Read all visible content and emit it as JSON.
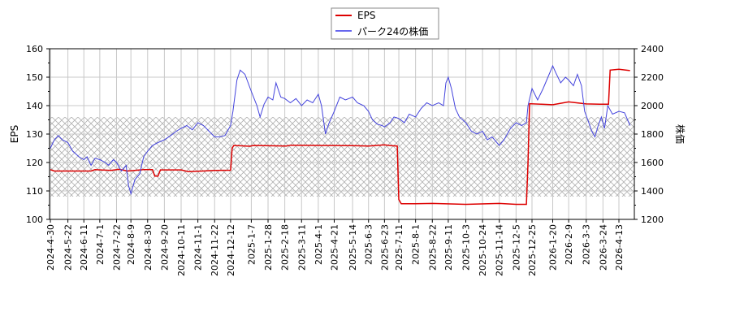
{
  "chart_data": {
    "type": "line",
    "title": "",
    "legend": {
      "position": "top-center",
      "entries": [
        {
          "name": "EPS",
          "color": "#dd0000"
        },
        {
          "name": "パーク24の株価",
          "color": "#4444dd"
        }
      ]
    },
    "xlabel": "",
    "ylabel_left": "EPS",
    "ylabel_right": "株価",
    "ylim_left": [
      100,
      160
    ],
    "ylim_right": [
      1200,
      2400
    ],
    "yticks_left": [
      100,
      110,
      120,
      130,
      140,
      150,
      160
    ],
    "yticks_right": [
      1200,
      1400,
      1600,
      1800,
      2000,
      2200,
      2400
    ],
    "grid": true,
    "hatch_band_eps": [
      108,
      136
    ],
    "x_tick_labels": [
      "2024-4-30",
      "2024-5-22",
      "2024-6-11",
      "2024-7-1",
      "2024-7-22",
      "2024-8-9",
      "2024-8-30",
      "2024-9-20",
      "2024-10-11",
      "2024-11-1",
      "2024-11-22",
      "2024-12-12",
      "2025-1-7",
      "2025-1-28",
      "2025-2-18",
      "2025-3-11",
      "2025-4-1",
      "2025-4-21",
      "2025-5-14",
      "2025-6-3",
      "2025-6-23",
      "2025-7-11",
      "2025-8-1",
      "2025-8-22",
      "2025-9-11",
      "2025-10-3",
      "2025-10-24",
      "2025-11-14",
      "2025-12-5",
      "2025-12-25",
      "2026-1-20",
      "2026-2-9",
      "2026-3-3",
      "2026-3-24",
      "2026-4-13"
    ],
    "series": [
      {
        "name": "EPS",
        "axis": "left",
        "color": "#dd0000",
        "points": [
          [
            "2024-4-30",
            117.5
          ],
          [
            "2024-5-5",
            117.0
          ],
          [
            "2024-6-20",
            117.0
          ],
          [
            "2024-6-25",
            117.5
          ],
          [
            "2024-7-15",
            117.2
          ],
          [
            "2024-7-25",
            117.6
          ],
          [
            "2024-8-5",
            117.0
          ],
          [
            "2024-8-25",
            117.5
          ],
          [
            "2024-9-5",
            117.5
          ],
          [
            "2024-9-8",
            115.2
          ],
          [
            "2024-9-12",
            115.2
          ],
          [
            "2024-9-15",
            117.4
          ],
          [
            "2024-10-11",
            117.4
          ],
          [
            "2024-10-20",
            116.8
          ],
          [
            "2024-11-22",
            117.2
          ],
          [
            "2024-12-12",
            117.3
          ],
          [
            "2024-12-14",
            125.0
          ],
          [
            "2024-12-16",
            126.0
          ],
          [
            "2025-1-5",
            125.7
          ],
          [
            "2025-1-10",
            126.0
          ],
          [
            "2025-2-20",
            125.8
          ],
          [
            "2025-2-25",
            126.1
          ],
          [
            "2025-4-1",
            126.0
          ],
          [
            "2025-5-14",
            125.9
          ],
          [
            "2025-6-3",
            125.8
          ],
          [
            "2025-6-23",
            126.2
          ],
          [
            "2025-7-1",
            125.9
          ],
          [
            "2025-7-9",
            125.8
          ],
          [
            "2025-7-11",
            107.0
          ],
          [
            "2025-7-14",
            105.5
          ],
          [
            "2025-8-1",
            105.5
          ],
          [
            "2025-8-22",
            105.6
          ],
          [
            "2025-10-3",
            105.3
          ],
          [
            "2025-11-14",
            105.6
          ],
          [
            "2025-12-5",
            105.3
          ],
          [
            "2025-12-18",
            105.3
          ],
          [
            "2025-12-20",
            120.0
          ],
          [
            "2025-12-22",
            140.7
          ],
          [
            "2026-1-20",
            140.3
          ],
          [
            "2026-2-9",
            141.3
          ],
          [
            "2026-3-3",
            140.6
          ],
          [
            "2026-3-20",
            140.5
          ],
          [
            "2026-3-31",
            140.5
          ],
          [
            "2026-4-2",
            152.5
          ],
          [
            "2026-4-13",
            152.8
          ],
          [
            "2026-4-27",
            152.3
          ]
        ]
      },
      {
        "name": "パーク24の株価",
        "axis": "right",
        "color": "#4444dd",
        "points": [
          [
            "2024-4-30",
            1700
          ],
          [
            "2024-5-5",
            1760
          ],
          [
            "2024-5-10",
            1790
          ],
          [
            "2024-5-15",
            1760
          ],
          [
            "2024-5-22",
            1740
          ],
          [
            "2024-5-28",
            1680
          ],
          [
            "2024-6-5",
            1640
          ],
          [
            "2024-6-11",
            1620
          ],
          [
            "2024-6-15",
            1640
          ],
          [
            "2024-6-20",
            1580
          ],
          [
            "2024-6-25",
            1630
          ],
          [
            "2024-7-1",
            1620
          ],
          [
            "2024-7-8",
            1600
          ],
          [
            "2024-7-12",
            1580
          ],
          [
            "2024-7-18",
            1620
          ],
          [
            "2024-7-22",
            1600
          ],
          [
            "2024-7-28",
            1540
          ],
          [
            "2024-8-3",
            1580
          ],
          [
            "2024-8-6",
            1440
          ],
          [
            "2024-8-9",
            1380
          ],
          [
            "2024-8-14",
            1480
          ],
          [
            "2024-8-20",
            1520
          ],
          [
            "2024-8-25",
            1640
          ],
          [
            "2024-8-30",
            1680
          ],
          [
            "2024-9-5",
            1720
          ],
          [
            "2024-9-12",
            1740
          ],
          [
            "2024-9-20",
            1760
          ],
          [
            "2024-9-28",
            1790
          ],
          [
            "2024-10-5",
            1820
          ],
          [
            "2024-10-11",
            1840
          ],
          [
            "2024-10-18",
            1860
          ],
          [
            "2024-10-25",
            1830
          ],
          [
            "2024-11-1",
            1880
          ],
          [
            "2024-11-8",
            1860
          ],
          [
            "2024-11-15",
            1820
          ],
          [
            "2024-11-22",
            1780
          ],
          [
            "2024-11-28",
            1780
          ],
          [
            "2024-12-5",
            1790
          ],
          [
            "2024-12-12",
            1860
          ],
          [
            "2024-12-15",
            1960
          ],
          [
            "2024-12-20",
            2180
          ],
          [
            "2024-12-24",
            2250
          ],
          [
            "2024-12-30",
            2220
          ],
          [
            "2025-1-7",
            2100
          ],
          [
            "2025-1-14",
            2000
          ],
          [
            "2025-1-18",
            1920
          ],
          [
            "2025-1-23",
            2010
          ],
          [
            "2025-1-28",
            2060
          ],
          [
            "2025-2-3",
            2040
          ],
          [
            "2025-2-7",
            2160
          ],
          [
            "2025-2-13",
            2060
          ],
          [
            "2025-2-18",
            2050
          ],
          [
            "2025-2-25",
            2020
          ],
          [
            "2025-3-4",
            2050
          ],
          [
            "2025-3-11",
            2000
          ],
          [
            "2025-3-18",
            2040
          ],
          [
            "2025-3-25",
            2020
          ],
          [
            "2025-4-1",
            2080
          ],
          [
            "2025-4-5",
            2000
          ],
          [
            "2025-4-10",
            1800
          ],
          [
            "2025-4-14",
            1870
          ],
          [
            "2025-4-21",
            1960
          ],
          [
            "2025-4-28",
            2060
          ],
          [
            "2025-5-5",
            2040
          ],
          [
            "2025-5-14",
            2060
          ],
          [
            "2025-5-20",
            2020
          ],
          [
            "2025-5-28",
            2000
          ],
          [
            "2025-6-3",
            1960
          ],
          [
            "2025-6-8",
            1900
          ],
          [
            "2025-6-14",
            1870
          ],
          [
            "2025-6-20",
            1860
          ],
          [
            "2025-6-23",
            1850
          ],
          [
            "2025-6-30",
            1880
          ],
          [
            "2025-7-5",
            1920
          ],
          [
            "2025-7-11",
            1910
          ],
          [
            "2025-7-18",
            1880
          ],
          [
            "2025-7-24",
            1940
          ],
          [
            "2025-8-1",
            1920
          ],
          [
            "2025-8-8",
            1980
          ],
          [
            "2025-8-15",
            2020
          ],
          [
            "2025-8-22",
            2000
          ],
          [
            "2025-8-30",
            2020
          ],
          [
            "2025-9-5",
            2000
          ],
          [
            "2025-9-8",
            2160
          ],
          [
            "2025-9-11",
            2200
          ],
          [
            "2025-9-15",
            2120
          ],
          [
            "2025-9-20",
            1980
          ],
          [
            "2025-9-25",
            1920
          ],
          [
            "2025-10-3",
            1880
          ],
          [
            "2025-10-10",
            1820
          ],
          [
            "2025-10-17",
            1800
          ],
          [
            "2025-10-24",
            1820
          ],
          [
            "2025-10-30",
            1760
          ],
          [
            "2025-11-5",
            1780
          ],
          [
            "2025-11-14",
            1720
          ],
          [
            "2025-11-20",
            1760
          ],
          [
            "2025-11-28",
            1840
          ],
          [
            "2025-12-5",
            1880
          ],
          [
            "2025-12-12",
            1860
          ],
          [
            "2025-12-18",
            1880
          ],
          [
            "2025-12-20",
            2000
          ],
          [
            "2025-12-25",
            2120
          ],
          [
            "2026-1-1",
            2040
          ],
          [
            "2026-1-8",
            2120
          ],
          [
            "2026-1-14",
            2200
          ],
          [
            "2026-1-20",
            2280
          ],
          [
            "2026-1-24",
            2230
          ],
          [
            "2026-1-30",
            2160
          ],
          [
            "2026-2-5",
            2200
          ],
          [
            "2026-2-9",
            2180
          ],
          [
            "2026-2-15",
            2140
          ],
          [
            "2026-2-20",
            2220
          ],
          [
            "2026-2-25",
            2140
          ],
          [
            "2026-3-1",
            1960
          ],
          [
            "2026-3-5",
            1900
          ],
          [
            "2026-3-10",
            1820
          ],
          [
            "2026-3-14",
            1780
          ],
          [
            "2026-3-18",
            1860
          ],
          [
            "2026-3-22",
            1920
          ],
          [
            "2026-3-26",
            1840
          ],
          [
            "2026-3-30",
            2000
          ],
          [
            "2026-4-5",
            1940
          ],
          [
            "2026-4-13",
            1960
          ],
          [
            "2026-4-20",
            1950
          ],
          [
            "2026-4-27",
            1860
          ]
        ]
      }
    ]
  }
}
